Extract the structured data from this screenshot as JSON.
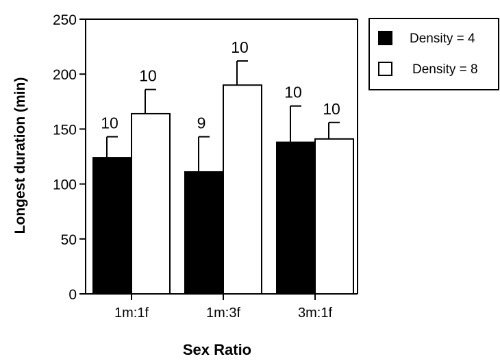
{
  "chart_data": {
    "type": "bar",
    "title": "",
    "xlabel": "Sex Ratio",
    "ylabel": "Longest duration (min)",
    "ylim": [
      0,
      250
    ],
    "yticks": [
      0,
      50,
      100,
      150,
      200,
      250
    ],
    "categories": [
      "1m:1f",
      "1m:3f",
      "3m:1f"
    ],
    "legend_position": "top-right",
    "grid": false,
    "series": [
      {
        "name": "Density = 4",
        "color": "#000000",
        "values": [
          124,
          111,
          138
        ],
        "error": [
          19,
          32,
          33
        ],
        "n_labels": [
          "10",
          "9",
          "10"
        ]
      },
      {
        "name": "Density = 8",
        "color": "#ffffff",
        "values": [
          164,
          190,
          141
        ],
        "error": [
          22,
          22,
          15
        ],
        "n_labels": [
          "10",
          "10",
          "10"
        ]
      }
    ]
  }
}
